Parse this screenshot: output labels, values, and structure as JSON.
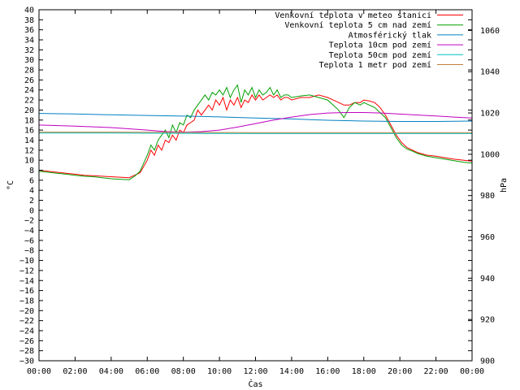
{
  "chart_data": {
    "type": "line",
    "xlabel": "Čas",
    "ylabel_left": "°C",
    "ylabel_right": "hPa",
    "x_ticks": [
      "00:00",
      "02:00",
      "04:00",
      "06:00",
      "08:00",
      "10:00",
      "12:00",
      "14:00",
      "16:00",
      "18:00",
      "20:00",
      "22:00",
      "00:00"
    ],
    "xlim": [
      0,
      24
    ],
    "ylim_left": [
      -30,
      40
    ],
    "y_ticks_left": [
      40,
      38,
      36,
      34,
      32,
      30,
      28,
      26,
      24,
      22,
      20,
      18,
      16,
      14,
      12,
      10,
      8,
      6,
      4,
      2,
      0,
      -2,
      -4,
      -6,
      -8,
      -10,
      -12,
      -14,
      -16,
      -18,
      -20,
      -22,
      -24,
      -26,
      -28,
      -30
    ],
    "ylim_right": [
      900,
      1070
    ],
    "y_ticks_right": [
      1060,
      1040,
      1020,
      1000,
      980,
      960,
      940,
      920,
      900
    ],
    "legend_position": "top-right",
    "series": [
      {
        "name": "Venkovní teplota v meteo stanici",
        "color": "#ff0000",
        "axis": "left",
        "x": [
          0,
          0.5,
          1,
          1.5,
          2,
          2.5,
          3,
          3.5,
          4,
          4.5,
          5,
          5.3,
          5.6,
          6,
          6.2,
          6.4,
          6.6,
          6.8,
          7,
          7.2,
          7.4,
          7.6,
          7.8,
          8,
          8.2,
          8.4,
          8.6,
          8.8,
          9,
          9.2,
          9.4,
          9.6,
          9.8,
          10,
          10.2,
          10.4,
          10.6,
          10.8,
          11,
          11.2,
          11.4,
          11.6,
          11.8,
          12,
          12.2,
          12.4,
          12.6,
          12.8,
          13,
          13.2,
          13.4,
          13.6,
          13.8,
          14,
          14.5,
          15,
          15.5,
          16,
          16.3,
          16.6,
          16.9,
          17.2,
          17.5,
          17.8,
          18,
          18.3,
          18.6,
          18.9,
          19.2,
          19.5,
          19.8,
          20.1,
          20.4,
          20.7,
          21,
          21.5,
          22,
          22.5,
          23,
          23.5,
          24
        ],
        "y": [
          8,
          7.8,
          7.6,
          7.4,
          7.2,
          7,
          6.9,
          6.8,
          6.7,
          6.6,
          6.5,
          7,
          7.5,
          10,
          12,
          11,
          13,
          12,
          14,
          13.5,
          15,
          14,
          16,
          15.5,
          17,
          17.5,
          18,
          20,
          19,
          20,
          21,
          20,
          22,
          21,
          22.5,
          20,
          22,
          21,
          22.5,
          20.5,
          22,
          21.5,
          23,
          22,
          23,
          22,
          22.5,
          23,
          22.5,
          23,
          22,
          22.5,
          22.5,
          22,
          22.5,
          22.5,
          23,
          22.5,
          22,
          21.5,
          21,
          21,
          21.5,
          21.5,
          22,
          21.8,
          21.5,
          20.5,
          19,
          17,
          15,
          13.5,
          12.5,
          12,
          11.5,
          11,
          10.8,
          10.5,
          10.2,
          10,
          9.8
        ]
      },
      {
        "name": "Venkovní teplota 5 cm nad zemí",
        "color": "#00a000",
        "axis": "left",
        "x": [
          0,
          0.5,
          1,
          1.5,
          2,
          2.5,
          3,
          3.5,
          4,
          4.5,
          5,
          5.3,
          5.6,
          6,
          6.2,
          6.4,
          6.6,
          6.8,
          7,
          7.2,
          7.4,
          7.6,
          7.8,
          8,
          8.2,
          8.4,
          8.6,
          8.8,
          9,
          9.2,
          9.4,
          9.6,
          9.8,
          10,
          10.2,
          10.4,
          10.6,
          10.8,
          11,
          11.2,
          11.4,
          11.6,
          11.8,
          12,
          12.2,
          12.4,
          12.6,
          12.8,
          13,
          13.2,
          13.4,
          13.6,
          13.8,
          14,
          14.5,
          15,
          15.5,
          16,
          16.3,
          16.6,
          16.9,
          17.2,
          17.5,
          17.8,
          18,
          18.3,
          18.6,
          18.9,
          19.2,
          19.5,
          19.8,
          20.1,
          20.4,
          20.7,
          21,
          21.5,
          22,
          22.5,
          23,
          23.5,
          24
        ],
        "y": [
          7.8,
          7.6,
          7.4,
          7.2,
          7,
          6.8,
          6.7,
          6.5,
          6.3,
          6.2,
          6.1,
          6.8,
          7.8,
          11,
          13,
          12,
          14,
          15,
          16,
          14.5,
          17,
          15.5,
          17.5,
          17,
          19,
          18.5,
          20,
          21,
          22,
          23,
          22,
          23.5,
          23,
          24,
          23,
          24.5,
          22.5,
          24,
          25,
          21.5,
          24,
          23,
          24.5,
          22.5,
          24,
          23,
          23.5,
          24.5,
          23,
          24,
          22.5,
          23,
          23,
          22.5,
          22.8,
          23,
          22.5,
          22,
          21,
          20,
          18.5,
          20.5,
          21.5,
          21,
          21.5,
          21,
          20.5,
          19.5,
          18.5,
          16.5,
          14.5,
          13,
          12.2,
          11.8,
          11.3,
          10.8,
          10.5,
          10.2,
          9.9,
          9.6,
          9.4
        ]
      },
      {
        "name": "Atmosférický tlak",
        "color": "#0080c0",
        "axis": "right",
        "x": [
          0,
          2,
          4,
          6,
          8,
          10,
          12,
          14,
          16,
          18,
          20,
          22,
          24
        ],
        "y": [
          1019.8,
          1019.5,
          1019.1,
          1018.8,
          1018.5,
          1018.1,
          1017.6,
          1017.1,
          1016.5,
          1016.1,
          1015.9,
          1015.9,
          1016.1
        ]
      },
      {
        "name": "Teplota 10cm pod zemí",
        "color": "#c000c0",
        "axis": "left",
        "x": [
          0,
          2,
          4,
          6,
          7,
          8,
          9,
          10,
          11,
          12,
          13,
          14,
          15,
          16,
          17,
          18,
          19,
          20,
          21,
          22,
          23,
          24
        ],
        "y": [
          17,
          16.8,
          16.5,
          16,
          15.7,
          15.6,
          15.7,
          16,
          16.6,
          17.3,
          18,
          18.6,
          19.1,
          19.4,
          19.5,
          19.5,
          19.4,
          19.2,
          19,
          18.8,
          18.6,
          18.4
        ]
      },
      {
        "name": "Teplota 50cm pod zemí",
        "color": "#00c0c0",
        "axis": "left",
        "x": [
          0,
          4,
          8,
          12,
          16,
          20,
          24
        ],
        "y": [
          15.4,
          15.4,
          15.35,
          15.3,
          15.3,
          15.3,
          15.3
        ]
      },
      {
        "name": "Teplota 1 metr pod zemí",
        "color": "#c08040",
        "axis": "left",
        "x": [
          0,
          4,
          8,
          12,
          16,
          20,
          24
        ],
        "y": [
          15.6,
          15.6,
          15.55,
          15.5,
          15.5,
          15.5,
          15.5
        ]
      }
    ]
  }
}
